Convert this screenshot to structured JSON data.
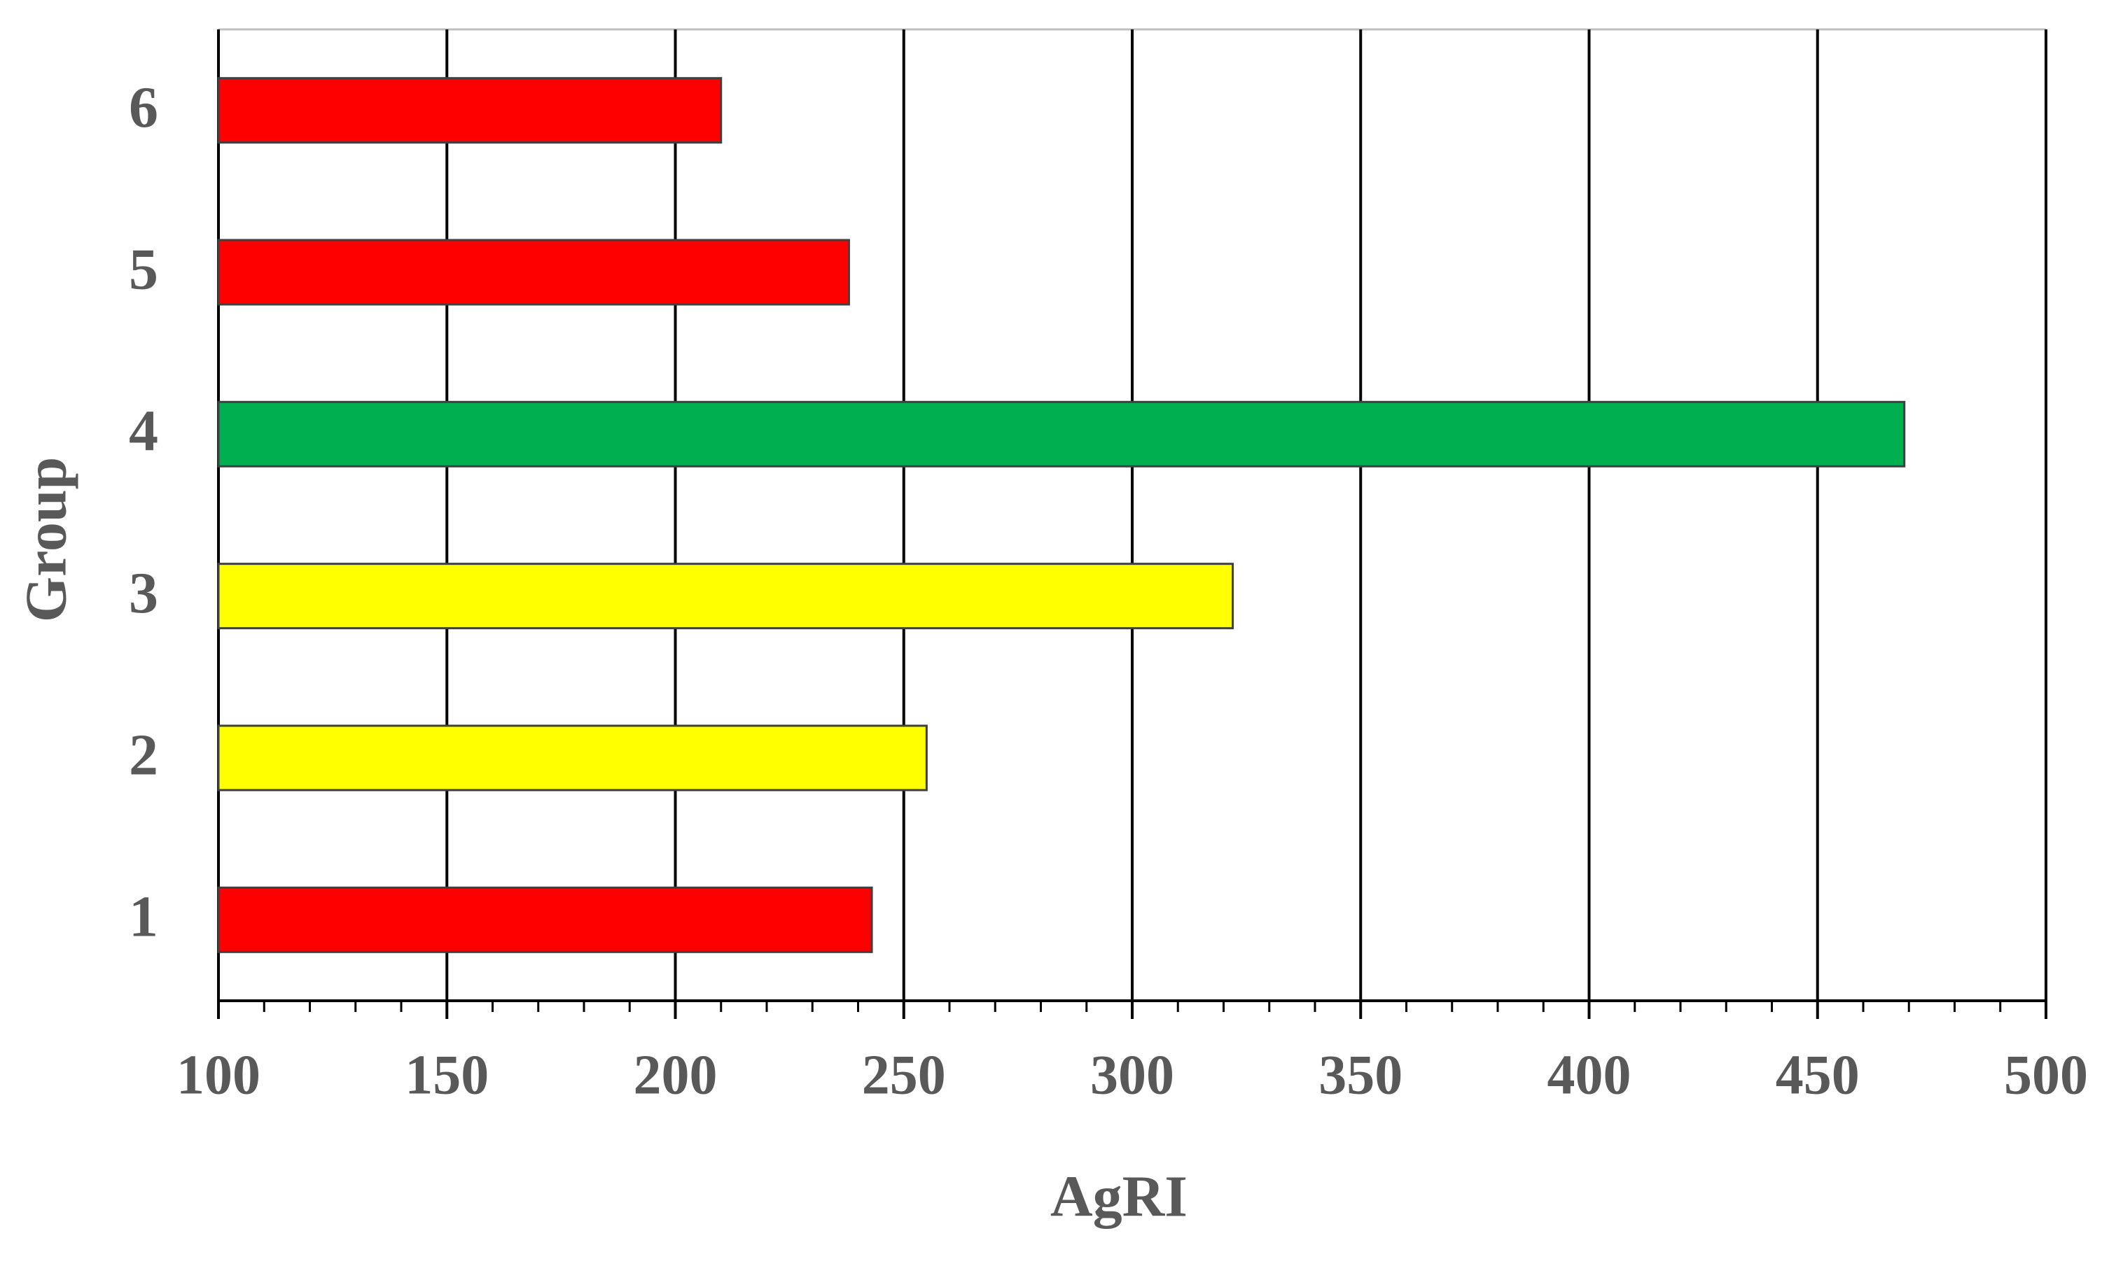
{
  "chart_data": {
    "type": "bar",
    "orientation": "horizontal",
    "x_label": "AgRI",
    "y_label": "Group",
    "categories": [
      "1",
      "2",
      "3",
      "4",
      "5",
      "6"
    ],
    "values": [
      243,
      255,
      322,
      469,
      238,
      210
    ],
    "colors": [
      "#ff0000",
      "#ffff00",
      "#ffff00",
      "#00b050",
      "#ff0000",
      "#ff0000"
    ],
    "xlim": [
      100,
      500
    ],
    "xticks": [
      100,
      150,
      200,
      250,
      300,
      350,
      400,
      450,
      500
    ],
    "grid": true
  }
}
